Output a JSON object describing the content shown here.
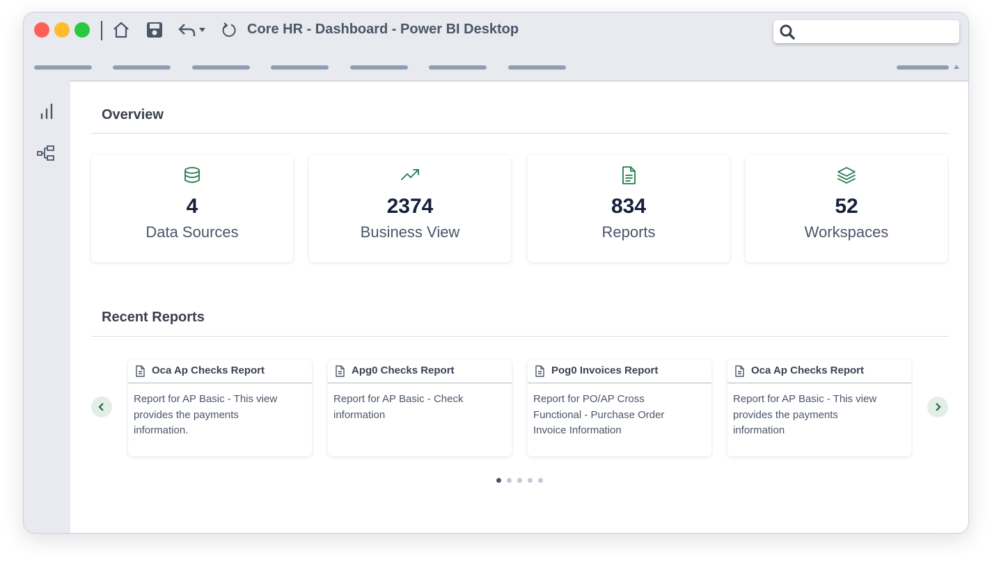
{
  "window": {
    "title": "Core HR - Dashboard - Power BI Desktop"
  },
  "overview": {
    "heading": "Overview",
    "stats": [
      {
        "value": 4,
        "label": "Data Sources"
      },
      {
        "value": 2374,
        "label": "Business View"
      },
      {
        "value": 834,
        "label": "Reports"
      },
      {
        "value": 52,
        "label": "Workspaces"
      }
    ]
  },
  "recent_reports": {
    "heading": "Recent Reports",
    "reports": [
      {
        "title": "Oca Ap Checks Report",
        "description": "Report for AP Basic - This view provides the payments information."
      },
      {
        "title": "Apg0 Checks Report",
        "description": "Report for AP Basic - Check information"
      },
      {
        "title": "Pog0 Invoices Report",
        "description": "Report for PO/AP Cross Functional - Purchase Order Invoice Information"
      },
      {
        "title": "Oca Ap Checks Report",
        "description": "Report for AP Basic - This view provides the payments information"
      }
    ]
  }
}
